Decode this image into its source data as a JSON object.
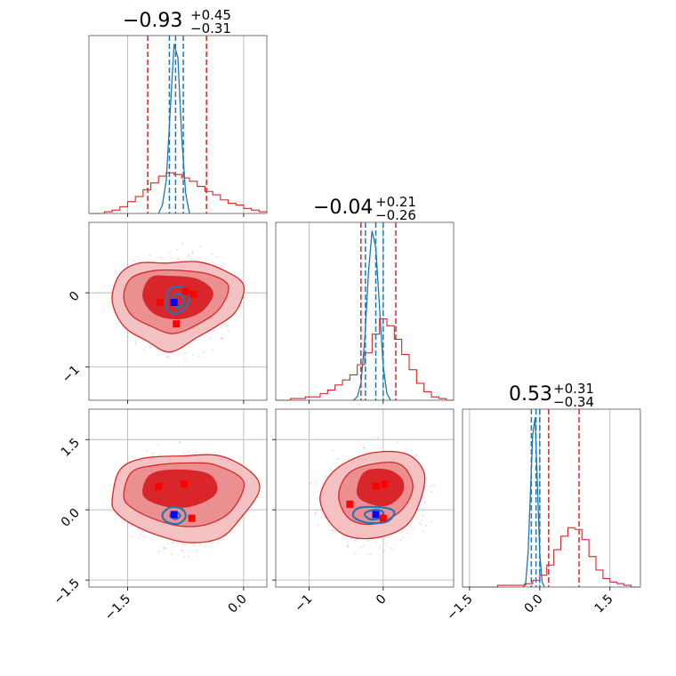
{
  "chart_data": {
    "type": "corner",
    "parameters": 3,
    "grid": true,
    "colors": {
      "red": "#d62728",
      "red_fill_light": "#f4c2c2",
      "red_fill_mid": "#ec8f91",
      "red_fill_dark": "#d8262b",
      "blue": "#1f77b4",
      "marker_red": "#ff0000",
      "marker_blue": "#0000ff",
      "scatter": "#f7b6c2"
    },
    "titles": [
      {
        "median": "−0.93",
        "plus": "+0.45",
        "minus": "−0.31"
      },
      {
        "median": "−0.04",
        "plus": "+0.21",
        "minus": "−0.26"
      },
      {
        "median": "0.53",
        "plus": "+0.31",
        "minus": "−0.34"
      }
    ],
    "ranges": [
      [
        -2.0,
        0.3
      ],
      [
        -1.45,
        0.95
      ],
      [
        -1.65,
        2.15
      ]
    ],
    "ticks": [
      {
        "values": [
          -1.5,
          0.0
        ],
        "labels": [
          "−1.5",
          "0.0"
        ]
      },
      {
        "values": [
          -1,
          0
        ],
        "labels": [
          "−1",
          "0"
        ]
      },
      {
        "values": [
          -1.5,
          0.0,
          1.5
        ],
        "labels": [
          "−1.5",
          "0.0",
          "1.5"
        ]
      }
    ],
    "truth_lines": [
      {
        "red": [
          -1.24,
          -0.48
        ],
        "blue": [
          -0.96,
          -0.88,
          -0.78
        ]
      },
      {
        "red": [
          -0.3,
          0.17
        ],
        "blue": [
          -0.24,
          -0.1,
          0.0
        ]
      },
      {
        "red": [
          0.19,
          0.84
        ],
        "blue": [
          -0.18,
          -0.08,
          0.0
        ]
      }
    ],
    "red_hist_1d": [
      {
        "x": [
          -2.0,
          -1.9,
          -1.8,
          -1.7,
          -1.6,
          -1.5,
          -1.4,
          -1.3,
          -1.2,
          -1.1,
          -1.0,
          -0.9,
          -0.8,
          -0.7,
          -0.6,
          -0.5,
          -0.4,
          -0.3,
          -0.2,
          -0.1,
          0.0,
          0.1,
          0.2,
          0.3
        ],
        "y": [
          0.0,
          0.0,
          0.01,
          0.02,
          0.04,
          0.07,
          0.1,
          0.14,
          0.18,
          0.22,
          0.24,
          0.23,
          0.21,
          0.19,
          0.16,
          0.13,
          0.11,
          0.08,
          0.06,
          0.05,
          0.03,
          0.02,
          0.01,
          0.0
        ]
      },
      {
        "x": [
          -1.45,
          -1.35,
          -1.25,
          -1.15,
          -1.05,
          -0.95,
          -0.85,
          -0.75,
          -0.65,
          -0.55,
          -0.45,
          -0.35,
          -0.25,
          -0.15,
          -0.05,
          0.05,
          0.15,
          0.25,
          0.35,
          0.45,
          0.55,
          0.65,
          0.75,
          0.85,
          0.95
        ],
        "y": [
          0.0,
          0.0,
          0.01,
          0.01,
          0.02,
          0.02,
          0.04,
          0.06,
          0.09,
          0.12,
          0.15,
          0.21,
          0.28,
          0.39,
          0.48,
          0.44,
          0.36,
          0.27,
          0.18,
          0.1,
          0.05,
          0.02,
          0.01,
          0.0,
          0.0
        ]
      },
      {
        "x": [
          -1.65,
          -1.5,
          -1.35,
          -1.2,
          -1.05,
          -0.9,
          -0.75,
          -0.6,
          -0.45,
          -0.3,
          -0.15,
          0.0,
          0.15,
          0.3,
          0.45,
          0.6,
          0.75,
          0.9,
          1.05,
          1.2,
          1.35,
          1.5,
          1.65,
          1.8,
          1.95,
          2.15
        ],
        "y": [
          0.0,
          0.0,
          0.0,
          0.0,
          0.0,
          0.01,
          0.01,
          0.01,
          0.01,
          0.02,
          0.04,
          0.07,
          0.13,
          0.22,
          0.3,
          0.35,
          0.34,
          0.28,
          0.18,
          0.1,
          0.05,
          0.03,
          0.02,
          0.01,
          0.0,
          0.0
        ]
      }
    ],
    "blue_hist_1d": [
      {
        "x": [
          -1.1,
          -1.05,
          -1.0,
          -0.95,
          -0.9,
          -0.85,
          -0.8,
          -0.75,
          -0.7
        ],
        "y": [
          0.0,
          0.05,
          0.2,
          0.6,
          1.0,
          0.92,
          0.45,
          0.12,
          0.0
        ]
      },
      {
        "x": [
          -0.4,
          -0.35,
          -0.3,
          -0.25,
          -0.2,
          -0.15,
          -0.1,
          -0.05,
          0.0,
          0.05,
          0.1
        ],
        "y": [
          0.0,
          0.02,
          0.1,
          0.35,
          0.75,
          1.0,
          0.9,
          0.55,
          0.2,
          0.04,
          0.0
        ]
      },
      {
        "x": [
          -0.35,
          -0.3,
          -0.25,
          -0.2,
          -0.15,
          -0.1,
          -0.05,
          0.0,
          0.05,
          0.1
        ],
        "y": [
          0.0,
          0.03,
          0.2,
          0.55,
          0.9,
          1.0,
          0.6,
          0.2,
          0.03,
          0.0
        ]
      }
    ],
    "panels_2d": [
      {
        "row": 1,
        "col": 0,
        "red_contours": [
          [
            [
              -1.7,
              -0.1
            ],
            [
              -1.6,
              0.25
            ],
            [
              -1.35,
              0.4
            ],
            [
              -1.0,
              0.4
            ],
            [
              -0.6,
              0.42
            ],
            [
              -0.25,
              0.3
            ],
            [
              0.0,
              0.1
            ],
            [
              -0.1,
              -0.25
            ],
            [
              -0.35,
              -0.45
            ],
            [
              -0.6,
              -0.6
            ],
            [
              -0.95,
              -0.8
            ],
            [
              -1.25,
              -0.65
            ],
            [
              -1.55,
              -0.45
            ]
          ],
          [
            [
              -1.55,
              -0.05
            ],
            [
              -1.45,
              0.2
            ],
            [
              -1.15,
              0.3
            ],
            [
              -0.8,
              0.3
            ],
            [
              -0.45,
              0.25
            ],
            [
              -0.2,
              0.1
            ],
            [
              -0.3,
              -0.2
            ],
            [
              -0.55,
              -0.4
            ],
            [
              -0.9,
              -0.55
            ],
            [
              -1.2,
              -0.45
            ],
            [
              -1.45,
              -0.3
            ]
          ],
          [
            [
              -1.3,
              -0.05
            ],
            [
              -1.2,
              0.2
            ],
            [
              -0.95,
              0.22
            ],
            [
              -0.6,
              0.18
            ],
            [
              -0.4,
              0.0
            ],
            [
              -0.55,
              -0.25
            ],
            [
              -0.85,
              -0.35
            ],
            [
              -1.15,
              -0.28
            ]
          ]
        ],
        "blue_contours": [
          [
            [
              -1.0,
              -0.1
            ],
            [
              -0.95,
              0.05
            ],
            [
              -0.8,
              0.08
            ],
            [
              -0.7,
              -0.05
            ],
            [
              -0.75,
              -0.2
            ],
            [
              -0.9,
              -0.28
            ],
            [
              -1.0,
              -0.2
            ]
          ],
          [
            [
              -0.93,
              -0.12
            ],
            [
              -0.88,
              -0.02
            ],
            [
              -0.8,
              -0.03
            ],
            [
              -0.78,
              -0.13
            ],
            [
              -0.85,
              -0.2
            ]
          ]
        ],
        "red_markers": [
          [
            -1.08,
            -0.13
          ],
          [
            -0.75,
            0.02
          ],
          [
            -0.65,
            -0.02
          ],
          [
            -0.87,
            -0.42
          ]
        ],
        "blue_marker": [
          -0.9,
          -0.13
        ]
      },
      {
        "row": 2,
        "col": 0,
        "red_contours": [
          [
            [
              -1.7,
              0.2
            ],
            [
              -1.6,
              0.85
            ],
            [
              -1.3,
              1.1
            ],
            [
              -0.8,
              1.15
            ],
            [
              -0.3,
              1.15
            ],
            [
              0.1,
              0.8
            ],
            [
              0.2,
              0.4
            ],
            [
              -0.05,
              -0.2
            ],
            [
              -0.3,
              -0.6
            ],
            [
              -0.7,
              -0.7
            ],
            [
              -1.1,
              -0.55
            ],
            [
              -1.45,
              -0.3
            ],
            [
              -1.65,
              -0.05
            ]
          ],
          [
            [
              -1.55,
              0.3
            ],
            [
              -1.45,
              0.8
            ],
            [
              -1.15,
              0.95
            ],
            [
              -0.7,
              1.0
            ],
            [
              -0.35,
              0.95
            ],
            [
              0.0,
              0.6
            ],
            [
              -0.15,
              0.0
            ],
            [
              -0.45,
              -0.3
            ],
            [
              -0.8,
              -0.35
            ],
            [
              -1.15,
              -0.2
            ],
            [
              -1.45,
              0.05
            ]
          ],
          [
            [
              -1.3,
              0.35
            ],
            [
              -1.2,
              0.75
            ],
            [
              -0.85,
              0.85
            ],
            [
              -0.45,
              0.75
            ],
            [
              -0.35,
              0.4
            ],
            [
              -0.55,
              0.15
            ],
            [
              -0.85,
              0.05
            ],
            [
              -1.15,
              0.15
            ]
          ]
        ],
        "blue_contours": [
          [
            [
              -1.05,
              -0.1
            ],
            [
              -0.95,
              0.05
            ],
            [
              -0.8,
              0.02
            ],
            [
              -0.75,
              -0.15
            ],
            [
              -0.85,
              -0.3
            ],
            [
              -1.0,
              -0.25
            ]
          ],
          [
            [
              -0.95,
              -0.12
            ],
            [
              -0.88,
              -0.05
            ],
            [
              -0.82,
              -0.12
            ],
            [
              -0.88,
              -0.2
            ]
          ]
        ],
        "red_markers": [
          [
            -1.1,
            0.5
          ],
          [
            -0.77,
            0.55
          ],
          [
            -0.67,
            -0.18
          ]
        ],
        "blue_marker": [
          -0.9,
          -0.1
        ]
      },
      {
        "row": 2,
        "col": 1,
        "red_contours": [
          [
            [
              -0.85,
              0.3
            ],
            [
              -0.65,
              0.85
            ],
            [
              -0.2,
              1.2
            ],
            [
              0.3,
              1.2
            ],
            [
              0.55,
              0.8
            ],
            [
              0.5,
              0.2
            ],
            [
              0.3,
              -0.35
            ],
            [
              -0.1,
              -0.6
            ],
            [
              -0.5,
              -0.55
            ],
            [
              -0.75,
              -0.2
            ]
          ],
          [
            [
              -0.6,
              0.3
            ],
            [
              -0.45,
              0.8
            ],
            [
              -0.05,
              1.0
            ],
            [
              0.25,
              0.95
            ],
            [
              0.4,
              0.5
            ],
            [
              0.25,
              0.0
            ],
            [
              -0.1,
              -0.3
            ],
            [
              -0.45,
              -0.2
            ]
          ],
          [
            [
              -0.35,
              0.35
            ],
            [
              -0.25,
              0.8
            ],
            [
              0.05,
              0.85
            ],
            [
              0.25,
              0.65
            ],
            [
              0.25,
              0.35
            ],
            [
              0.05,
              0.1
            ],
            [
              -0.2,
              0.15
            ]
          ]
        ],
        "blue_contours": [
          [
            [
              -0.4,
              -0.05
            ],
            [
              -0.3,
              0.05
            ],
            [
              0.0,
              0.05
            ],
            [
              0.15,
              -0.05
            ],
            [
              0.05,
              -0.25
            ],
            [
              -0.2,
              -0.28
            ],
            [
              -0.38,
              -0.18
            ]
          ],
          [
            [
              -0.25,
              -0.08
            ],
            [
              -0.12,
              0.0
            ],
            [
              0.0,
              -0.05
            ],
            [
              -0.05,
              -0.18
            ],
            [
              -0.18,
              -0.2
            ]
          ]
        ],
        "red_markers": [
          [
            -0.45,
            0.12
          ],
          [
            -0.1,
            0.5
          ],
          [
            0.02,
            0.55
          ],
          [
            0.0,
            -0.18
          ]
        ],
        "blue_marker": [
          -0.1,
          -0.1
        ]
      }
    ]
  }
}
